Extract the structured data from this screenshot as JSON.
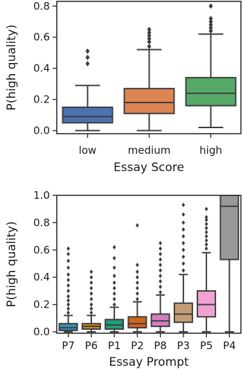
{
  "chart_data": [
    {
      "type": "box",
      "xlabel": "Essay Score",
      "ylabel": "P(high quality)",
      "ylim": [
        -0.02,
        0.83
      ],
      "yticks": [
        "0.0",
        "0.2",
        "0.4",
        "0.6",
        "0.8"
      ],
      "yticks_values": [
        0.0,
        0.2,
        0.4,
        0.6,
        0.8
      ],
      "categories": [
        "low",
        "medium",
        "high"
      ],
      "boxes": [
        {
          "name": "low",
          "color": "#4c72b0",
          "whisker_low": 0.0,
          "q1": 0.05,
          "median": 0.09,
          "q3": 0.15,
          "whisker_high": 0.29,
          "outliers": [
            0.43,
            0.47,
            0.51
          ]
        },
        {
          "name": "medium",
          "color": "#dd8452",
          "whisker_low": 0.0,
          "q1": 0.11,
          "median": 0.18,
          "q3": 0.27,
          "whisker_high": 0.52,
          "outliers": [
            0.54,
            0.57,
            0.59,
            0.61,
            0.63,
            0.65
          ]
        },
        {
          "name": "high",
          "color": "#55a868",
          "whisker_low": 0.02,
          "q1": 0.16,
          "median": 0.24,
          "q3": 0.34,
          "whisker_high": 0.62,
          "outliers": [
            0.64,
            0.66,
            0.68,
            0.7,
            0.72,
            0.8
          ]
        }
      ]
    },
    {
      "type": "box",
      "xlabel": "Essay Prompt",
      "ylabel": "P(high quality)",
      "ylim": [
        -0.01,
        1.0
      ],
      "yticks": [
        "0.0",
        "0.2",
        "0.4",
        "0.6",
        "0.8",
        "1.0"
      ],
      "yticks_values": [
        0.0,
        0.2,
        0.4,
        0.6,
        0.8,
        1.0
      ],
      "categories": [
        "P7",
        "P6",
        "P1",
        "P2",
        "P8",
        "P3",
        "P5",
        "P4"
      ],
      "boxes": [
        {
          "name": "P7",
          "color": "#3a8fb7",
          "whisker_low": 0.0,
          "q1": 0.01,
          "median": 0.03,
          "q3": 0.06,
          "whisker_high": 0.12,
          "outliers": [
            0.14,
            0.17,
            0.2,
            0.23,
            0.26,
            0.3,
            0.34,
            0.38,
            0.42,
            0.47,
            0.52,
            0.57,
            0.61
          ]
        },
        {
          "name": "P6",
          "color": "#d48c1e",
          "whisker_low": 0.0,
          "q1": 0.02,
          "median": 0.04,
          "q3": 0.06,
          "whisker_high": 0.12,
          "outliers": [
            0.14,
            0.17,
            0.2,
            0.24,
            0.28,
            0.32,
            0.36,
            0.4,
            0.44
          ]
        },
        {
          "name": "P1",
          "color": "#1f9e77",
          "whisker_low": 0.0,
          "q1": 0.02,
          "median": 0.05,
          "q3": 0.09,
          "whisker_high": 0.18,
          "outliers": [
            0.2,
            0.24,
            0.28,
            0.32,
            0.36,
            0.41,
            0.47,
            0.54,
            0.62
          ]
        },
        {
          "name": "P2",
          "color": "#d6631c",
          "whisker_low": 0.0,
          "q1": 0.03,
          "median": 0.06,
          "q3": 0.11,
          "whisker_high": 0.22,
          "outliers": [
            0.24,
            0.28,
            0.32,
            0.36,
            0.4,
            0.44,
            0.49,
            0.78
          ]
        },
        {
          "name": "P8",
          "color": "#d07fbf",
          "whisker_low": 0.0,
          "q1": 0.04,
          "median": 0.08,
          "q3": 0.13,
          "whisker_high": 0.27,
          "outliers": [
            0.29,
            0.33,
            0.37,
            0.41,
            0.45,
            0.49,
            0.53,
            0.57,
            0.61,
            0.65
          ]
        },
        {
          "name": "P3",
          "color": "#c59d73",
          "whisker_low": 0.0,
          "q1": 0.07,
          "median": 0.13,
          "q3": 0.21,
          "whisker_high": 0.42,
          "outliers": [
            0.45,
            0.5,
            0.55,
            0.6,
            0.65,
            0.7,
            0.75,
            0.8,
            0.86,
            0.93
          ]
        },
        {
          "name": "P5",
          "color": "#f0a3d1",
          "whisker_low": 0.0,
          "q1": 0.11,
          "median": 0.2,
          "q3": 0.3,
          "whisker_high": 0.58,
          "outliers": [
            0.61,
            0.64,
            0.67,
            0.7,
            0.73,
            0.76,
            0.79,
            0.82,
            0.84,
            0.9
          ]
        },
        {
          "name": "P4",
          "color": "#999999",
          "whisker_low": 0.0,
          "q1": 0.53,
          "median": 0.92,
          "q3": 1.0,
          "whisker_high": 1.0,
          "outliers": []
        }
      ]
    }
  ]
}
